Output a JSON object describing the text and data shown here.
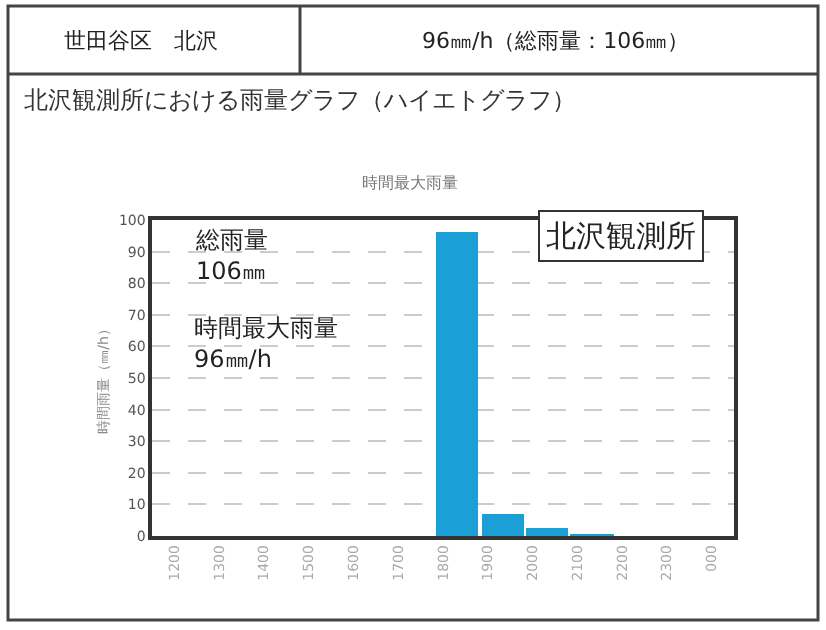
{
  "chart_data": {
    "type": "bar",
    "title": "北沢観測所における雨量グラフ（ハイエトグラフ）",
    "subtitle": "時間最大雨量",
    "ylabel": "時間雨量（㎜/h）",
    "categories": [
      "1200",
      "1300",
      "1400",
      "1500",
      "1600",
      "1700",
      "1800",
      "1900",
      "2000",
      "2100",
      "2200",
      "2300",
      "000"
    ],
    "values": [
      0,
      0,
      0,
      0,
      0,
      0,
      96,
      7,
      2.5,
      0.5,
      0,
      0,
      0
    ],
    "color": "#1a9fd6",
    "ylim": [
      0,
      100
    ],
    "yticks": [
      0,
      10,
      20,
      30,
      40,
      50,
      60,
      70,
      80,
      90,
      100
    ],
    "grid": "y",
    "annotations": [
      "世田谷区　北沢",
      "96㎜/h（総雨量：106㎜）",
      "総雨量\n106㎜",
      "時間最大雨量\n96㎜/h",
      "北沢観測所"
    ]
  }
}
